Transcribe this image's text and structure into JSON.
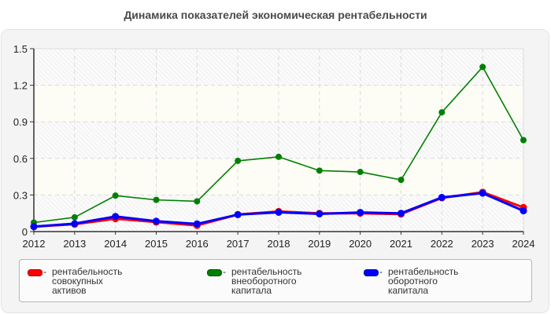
{
  "chart_data": {
    "type": "line",
    "title": "Динамика показателей экономическая рентабельности",
    "xlabel": "",
    "ylabel": "",
    "ylim": [
      0,
      1.5
    ],
    "yticks": [
      "0",
      "0.3",
      "0.6",
      "0.9",
      "1.2",
      "1.5"
    ],
    "grid": true,
    "legend_position": "bottom",
    "categories": [
      "2012",
      "2013",
      "2014",
      "2015",
      "2016",
      "2017",
      "2018",
      "2019",
      "2020",
      "2021",
      "2022",
      "2023",
      "2024"
    ],
    "series": [
      {
        "name": "рентабельность совокупных активов",
        "color": "#ff0000",
        "values": [
          0.04,
          0.06,
          0.105,
          0.078,
          0.05,
          0.14,
          0.165,
          0.15,
          0.15,
          0.143,
          0.276,
          0.323,
          0.198
        ]
      },
      {
        "name": "рентабельность внеоборотного капитала",
        "color": "#008000",
        "values": [
          0.074,
          0.117,
          0.295,
          0.26,
          0.248,
          0.58,
          0.613,
          0.5,
          0.489,
          0.424,
          0.978,
          1.35,
          0.75
        ]
      },
      {
        "name": "рентабельность оборотного капитала",
        "color": "#0000ff",
        "values": [
          0.041,
          0.065,
          0.124,
          0.085,
          0.063,
          0.139,
          0.158,
          0.145,
          0.157,
          0.15,
          0.28,
          0.315,
          0.17
        ]
      }
    ]
  },
  "legend": {
    "items": [
      {
        "dash": "-",
        "label": "рентабельность совокупных\nактивов",
        "color": "#ff0000"
      },
      {
        "dash": "-",
        "label": "рентабельность\nвнеоборотного капитала",
        "color": "#008000"
      },
      {
        "dash": "-",
        "label": "рентабельность оборотного\nкапитала",
        "color": "#0000ff"
      }
    ]
  }
}
